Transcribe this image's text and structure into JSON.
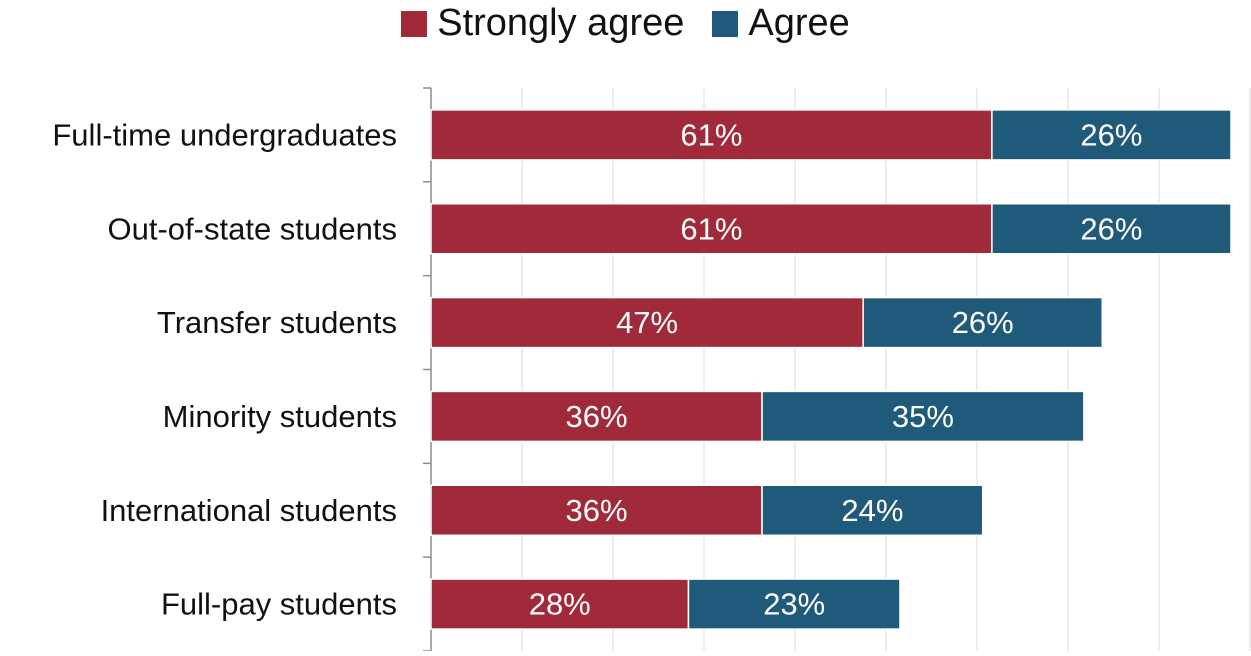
{
  "chart_data": {
    "type": "bar",
    "orientation": "horizontal",
    "stacked": true,
    "categories": [
      "Full-time undergraduates",
      "Out-of-state students",
      "Transfer students",
      "Minority students",
      "International students",
      "Full-pay students"
    ],
    "series": [
      {
        "name": "Strongly agree",
        "color": "#A12A3A",
        "values": [
          61,
          61,
          47,
          36,
          36,
          28
        ],
        "labels": [
          "61%",
          "61%",
          "47%",
          "36%",
          "36%",
          "28%"
        ]
      },
      {
        "name": "Agree",
        "color": "#1F5A7A",
        "values": [
          26,
          26,
          26,
          35,
          24,
          23
        ],
        "labels": [
          "26%",
          "26%",
          "26%",
          "35%",
          "24%",
          "23%"
        ]
      }
    ],
    "title": "",
    "xlabel": "",
    "ylabel": "",
    "xlim": [
      0,
      87
    ],
    "grid": true,
    "legend_position": "top-center",
    "value_format": "percent"
  }
}
